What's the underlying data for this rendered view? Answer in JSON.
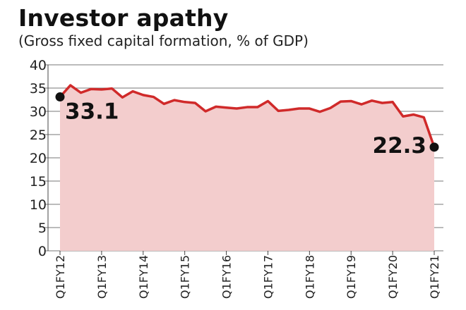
{
  "chart_data": {
    "type": "area",
    "title": "Investor apathy",
    "subtitle": "(Gross fixed capital formation, % of GDP)",
    "xlabel": "",
    "ylabel": "",
    "ylim": [
      0,
      40
    ],
    "yticks": [
      0,
      5,
      10,
      15,
      20,
      25,
      30,
      35,
      40
    ],
    "grid": "horizontal",
    "x_tick_labels": [
      "Q1FY12",
      "Q1FY13",
      "Q1FY14",
      "Q1FY15",
      "Q1FY16",
      "Q1FY17",
      "Q1FY18",
      "Q1FY19",
      "Q1FY20",
      "Q1FY21"
    ],
    "x": [
      "Q1FY12",
      "Q2FY12",
      "Q3FY12",
      "Q4FY12",
      "Q1FY13",
      "Q2FY13",
      "Q3FY13",
      "Q4FY13",
      "Q1FY14",
      "Q2FY14",
      "Q3FY14",
      "Q4FY14",
      "Q1FY15",
      "Q2FY15",
      "Q3FY15",
      "Q4FY15",
      "Q1FY16",
      "Q2FY16",
      "Q3FY16",
      "Q4FY16",
      "Q1FY17",
      "Q2FY17",
      "Q3FY17",
      "Q4FY17",
      "Q1FY18",
      "Q2FY18",
      "Q3FY18",
      "Q4FY18",
      "Q1FY19",
      "Q2FY19",
      "Q3FY19",
      "Q4FY19",
      "Q1FY20",
      "Q2FY20",
      "Q3FY20",
      "Q4FY20",
      "Q1FY21"
    ],
    "series": [
      {
        "values": [
          33.1,
          35.6,
          34.0,
          34.8,
          34.7,
          34.9,
          33.0,
          34.3,
          33.5,
          33.1,
          31.6,
          32.4,
          32.0,
          31.8,
          30.0,
          31.0,
          30.8,
          30.6,
          30.9,
          30.9,
          32.2,
          30.1,
          30.3,
          30.6,
          30.6,
          29.9,
          30.7,
          32.1,
          32.2,
          31.5,
          32.3,
          31.8,
          32.0,
          28.9,
          29.3,
          28.7,
          22.3
        ],
        "color": "#d02a2a",
        "fill": "#f3cdcd"
      }
    ],
    "annotations": [
      {
        "text": "33.1",
        "x": "Q1FY12",
        "y": 33.1
      },
      {
        "text": "22.3",
        "x": "Q1FY21",
        "y": 22.3
      }
    ]
  }
}
